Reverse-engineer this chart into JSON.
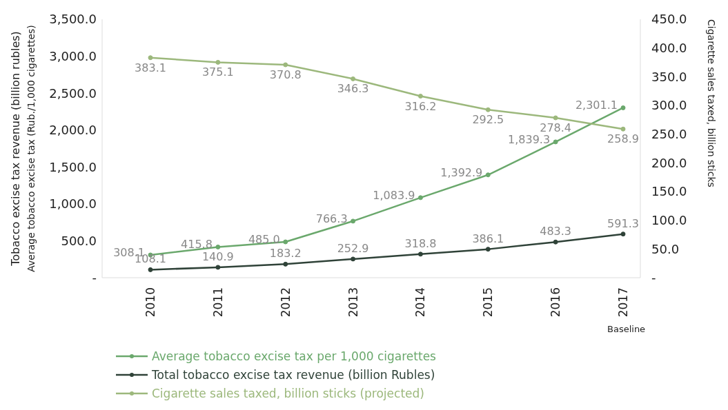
{
  "chart_data": {
    "type": "line",
    "categories": [
      "2010",
      "2011",
      "2012",
      "2013",
      "2014",
      "2015",
      "2016",
      "2017"
    ],
    "ylabel": "Tobacco excise tax revenue (billion rubles)\nAverage tobacco excise tax (Rub./1,000 cigarettes)",
    "y2label": "Cigarette sales taxed, billion sticks",
    "ylim": [
      0,
      3500
    ],
    "yticks": [
      {
        "value": 0,
        "label": "-"
      },
      {
        "value": 500,
        "label": "500.0"
      },
      {
        "value": 1000,
        "label": "1,000.0"
      },
      {
        "value": 1500,
        "label": "1,500.0"
      },
      {
        "value": 2000,
        "label": "2,000.0"
      },
      {
        "value": 2500,
        "label": "2,500.0"
      },
      {
        "value": 3000,
        "label": "3,000.0"
      },
      {
        "value": 3500,
        "label": "3,500.0"
      }
    ],
    "y2lim": [
      0,
      450
    ],
    "y2ticks": [
      {
        "value": 0,
        "label": "-"
      },
      {
        "value": 50,
        "label": "50.0"
      },
      {
        "value": 100,
        "label": "100.0"
      },
      {
        "value": 150,
        "label": "150.0"
      },
      {
        "value": 200,
        "label": "200.0"
      },
      {
        "value": 250,
        "label": "250.0"
      },
      {
        "value": 300,
        "label": "300.0"
      },
      {
        "value": 350,
        "label": "350.0"
      },
      {
        "value": 400,
        "label": "400.0"
      },
      {
        "value": 450,
        "label": "450.0"
      }
    ],
    "series": [
      {
        "name": "Average tobacco excise tax per 1,000 cigarettes",
        "color": "#6aa86c",
        "values": [
          308.1,
          415.8,
          485.0,
          766.3,
          1083.9,
          1392.9,
          1839.3,
          2301.1
        ],
        "value_labels": [
          "308.1",
          "415.8",
          "485.0",
          "766.3",
          "1,083.9",
          "1,392.9",
          "1,839.3",
          "2,301.1"
        ]
      },
      {
        "name": "Total tobacco excise tax revenue (billion Rubles)",
        "color": "#2f4238",
        "values": [
          108.1,
          140.9,
          183.2,
          252.9,
          318.8,
          386.1,
          483.3,
          591.3
        ],
        "value_labels": [
          "108.1",
          "140.9",
          "183.2",
          "252.9",
          "318.8",
          "386.1",
          "483.3",
          "591.3"
        ]
      },
      {
        "name": "Cigarette sales taxed, billion sticks (projected)",
        "color": "#9cb87c",
        "axis": "y2",
        "values": [
          383.1,
          375.1,
          370.8,
          346.3,
          316.2,
          292.5,
          278.4,
          258.9
        ],
        "value_labels": [
          "383.1",
          "375.1",
          "370.8",
          "346.3",
          "316.2",
          "292.5",
          "278.4",
          "258.9"
        ]
      }
    ],
    "annotations": [
      "Baseline"
    ],
    "marker": "circle",
    "grid": false,
    "legend": "bottom left"
  }
}
